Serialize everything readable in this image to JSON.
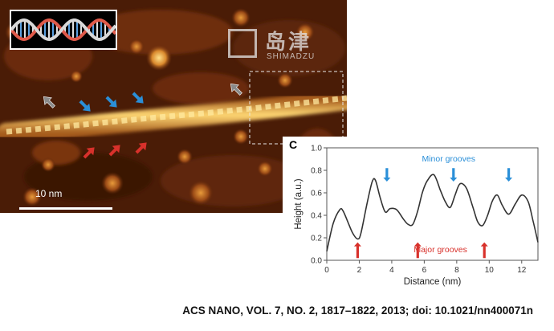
{
  "figure": {
    "logo": {
      "brand_cn": "岛津",
      "brand_en": "SHIMADZU"
    },
    "scale_bar_label": "10 nm",
    "panel_letter": "C",
    "citation": "ACS NANO, VOL. 7, NO. 2, 1817–1822, 2013; doi: 10.1021/nn400071n",
    "colors": {
      "blue_arrow": "#2a8fd8",
      "red_arrow": "#d8312b",
      "gray_arrow": "#8a8a8a",
      "afm_dark": "#2a0f03",
      "afm_bright": "#ffd070"
    },
    "icons": [
      "dna-helix-icon",
      "shimadzu-logo-icon",
      "arrow-down-icon",
      "arrow-up-icon"
    ],
    "chart_data": {
      "type": "line",
      "xlabel": "Distance (nm)",
      "ylabel": "Height (a.u.)",
      "xlim": [
        0,
        13
      ],
      "ylim": [
        0,
        1.0
      ],
      "xticks": [
        0,
        2,
        4,
        6,
        8,
        10,
        12
      ],
      "yticks": [
        0.0,
        0.2,
        0.4,
        0.6,
        0.8,
        1.0
      ],
      "x": [
        0,
        0.4,
        0.8,
        1.0,
        1.3,
        1.6,
        1.9,
        2.1,
        2.5,
        2.8,
        3.0,
        3.3,
        3.6,
        3.9,
        4.3,
        4.7,
        5.0,
        5.3,
        5.6,
        5.9,
        6.2,
        6.6,
        7.0,
        7.3,
        7.6,
        7.9,
        8.2,
        8.6,
        9.0,
        9.3,
        9.6,
        9.9,
        10.2,
        10.5,
        10.8,
        11.2,
        11.6,
        12.0,
        12.4,
        12.7,
        13.0
      ],
      "y": [
        0.08,
        0.33,
        0.45,
        0.44,
        0.34,
        0.24,
        0.19,
        0.24,
        0.52,
        0.7,
        0.71,
        0.55,
        0.43,
        0.46,
        0.45,
        0.37,
        0.32,
        0.32,
        0.44,
        0.61,
        0.71,
        0.76,
        0.62,
        0.52,
        0.47,
        0.58,
        0.68,
        0.64,
        0.47,
        0.34,
        0.31,
        0.4,
        0.53,
        0.58,
        0.49,
        0.41,
        0.5,
        0.58,
        0.52,
        0.35,
        0.16
      ],
      "annotations": [
        {
          "text": "Minor grooves",
          "x": 7.5,
          "y": 0.88,
          "color": "#2a8fd8"
        },
        {
          "text": "Major grooves",
          "x": 7.0,
          "y": 0.07,
          "color": "#d8312b"
        }
      ],
      "minor_groove_arrows_x": [
        3.7,
        7.8,
        11.2
      ],
      "major_groove_arrows_x": [
        1.9,
        5.6,
        9.7
      ]
    }
  }
}
